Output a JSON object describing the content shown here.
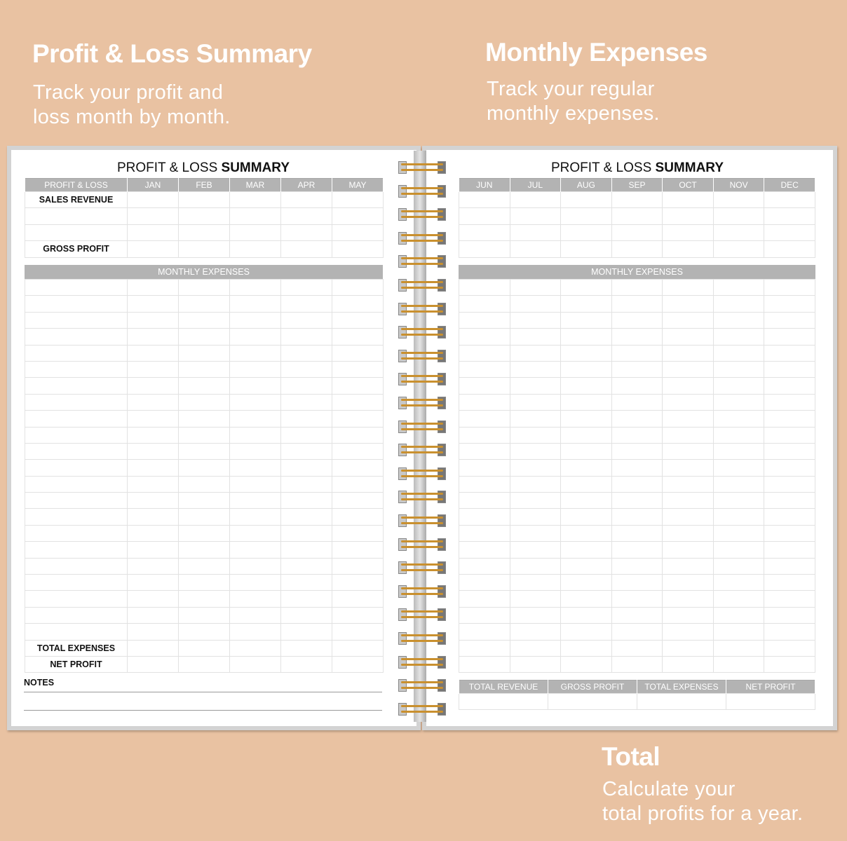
{
  "promo": {
    "left": {
      "title": "Profit & Loss Summary",
      "lines": [
        "Track your profit and",
        "loss month by month."
      ]
    },
    "right": {
      "title": "Monthly Expenses",
      "lines": [
        "Track your regular",
        "monthly expenses."
      ]
    },
    "bottom": {
      "title": "Total",
      "lines": [
        "Calculate your",
        "total profits for a year."
      ]
    }
  },
  "left_page": {
    "title_light": "PROFIT & LOSS ",
    "title_bold": "SUMMARY",
    "columns": [
      "PROFIT & LOSS",
      "JAN",
      "FEB",
      "MAR",
      "APR",
      "MAY"
    ],
    "rows": [
      "SALES REVENUE",
      "",
      "",
      "GROSS PROFIT"
    ],
    "expenses_header": "MONTHLY EXPENSES",
    "total_rows": [
      "TOTAL EXPENSES",
      "NET PROFIT"
    ],
    "notes_label": "NOTES"
  },
  "right_page": {
    "title_light": "PROFIT & LOSS ",
    "title_bold": "SUMMARY",
    "columns": [
      "JUN",
      "JUL",
      "AUG",
      "SEP",
      "OCT",
      "NOV",
      "DEC"
    ],
    "expenses_header": "MONTHLY EXPENSES",
    "totals_columns": [
      "TOTAL REVENUE",
      "GROSS PROFIT",
      "TOTAL EXPENSES",
      "NET PROFIT"
    ]
  },
  "colors": {
    "background": "#e9c2a2",
    "header_gray": "#b3b3b3",
    "ring_gold": "#c9902f"
  }
}
